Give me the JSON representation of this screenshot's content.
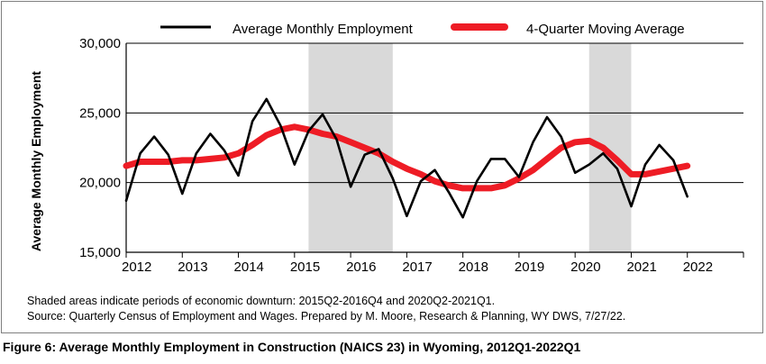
{
  "chart_data": {
    "type": "line",
    "ylabel": "Average Monthly Employment",
    "xlabel": "",
    "ylim": [
      15000,
      30000
    ],
    "yticks": [
      15000,
      20000,
      25000,
      30000
    ],
    "ytick_labels": [
      "15,000",
      "20,000",
      "25,000",
      "30,000"
    ],
    "xlim": [
      2012,
      2023
    ],
    "xticks": [
      2012,
      2013,
      2014,
      2015,
      2016,
      2017,
      2018,
      2019,
      2020,
      2021,
      2022
    ],
    "xtick_labels": [
      "2012",
      "2013",
      "2014",
      "2015",
      "2016",
      "2017",
      "2018",
      "2019",
      "2020",
      "2021",
      "2022"
    ],
    "grid": "horizontal",
    "legend": "top",
    "shaded_periods": [
      [
        "2015Q2",
        "2016Q4"
      ],
      [
        "2020Q2",
        "2021Q1"
      ]
    ],
    "x": [
      "2012Q1",
      "2012Q2",
      "2012Q3",
      "2012Q4",
      "2013Q1",
      "2013Q2",
      "2013Q3",
      "2013Q4",
      "2014Q1",
      "2014Q2",
      "2014Q3",
      "2014Q4",
      "2015Q1",
      "2015Q2",
      "2015Q3",
      "2015Q4",
      "2016Q1",
      "2016Q2",
      "2016Q3",
      "2016Q4",
      "2017Q1",
      "2017Q2",
      "2017Q3",
      "2017Q4",
      "2018Q1",
      "2018Q2",
      "2018Q3",
      "2018Q4",
      "2019Q1",
      "2019Q2",
      "2019Q3",
      "2019Q4",
      "2020Q1",
      "2020Q2",
      "2020Q3",
      "2020Q4",
      "2021Q1",
      "2021Q2",
      "2021Q3",
      "2021Q4",
      "2022Q1"
    ],
    "series": [
      {
        "name": "Average Monthly Employment",
        "color": "#000000",
        "values": [
          18700,
          22100,
          23300,
          22000,
          19200,
          22100,
          23500,
          22300,
          20500,
          24400,
          26000,
          24100,
          21300,
          23700,
          24900,
          23100,
          19700,
          22000,
          22400,
          20300,
          17600,
          20100,
          20900,
          19300,
          17500,
          20100,
          21700,
          21700,
          20400,
          22900,
          24700,
          23300,
          20700,
          21300,
          22100,
          21000,
          18300,
          21300,
          22700,
          21600,
          19000
        ]
      },
      {
        "name": "4-Quarter Moving Average",
        "color": "#ee1c25",
        "values": [
          21200,
          21500,
          21500,
          21500,
          21600,
          21600,
          21700,
          21800,
          22100,
          22700,
          23400,
          23800,
          24000,
          23800,
          23500,
          23300,
          22900,
          22500,
          22100,
          21500,
          21000,
          20600,
          20100,
          19800,
          19600,
          19600,
          19600,
          19800,
          20300,
          20900,
          21700,
          22500,
          22900,
          23000,
          22500,
          21600,
          20600,
          20600,
          20800,
          21000,
          21200
        ]
      }
    ]
  },
  "notes": {
    "line1": "Shaded areas indicate periods of economic downturn: 2015Q2-2016Q4 and 2020Q2-2021Q1.",
    "line2": "Source: Quarterly Census of Employment and Wages. Prepared by M. Moore, Research & Planning, WY DWS, 7/27/22."
  },
  "caption": "Figure 6: Average Monthly Employment in Construction (NAICS 23) in Wyoming, 2012Q1-2022Q1"
}
